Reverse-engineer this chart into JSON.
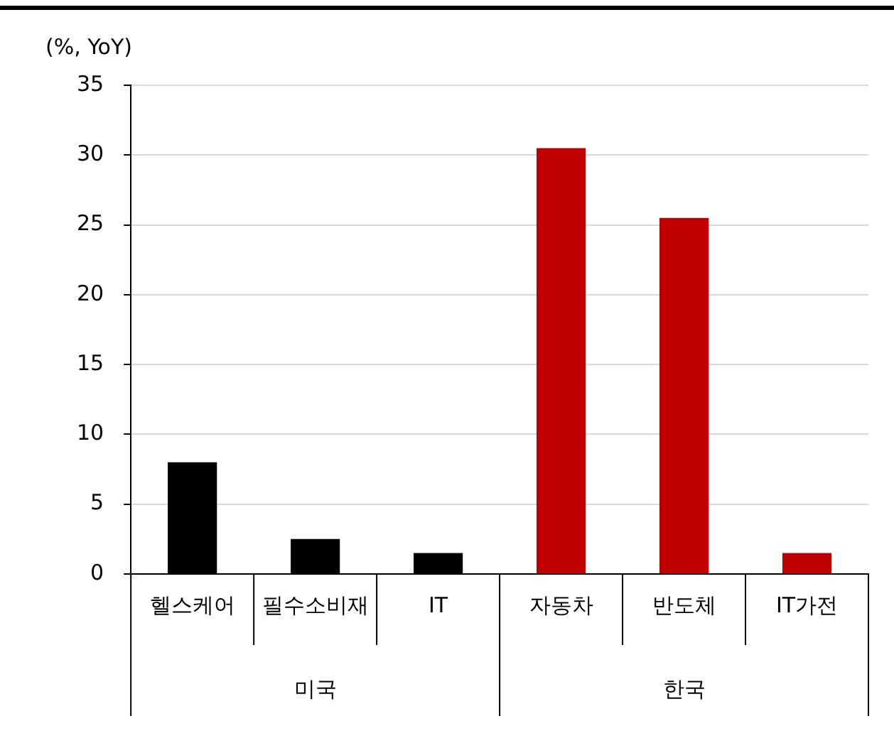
{
  "chart_data": {
    "type": "bar",
    "ylabel": "(%, YoY)",
    "categories": [
      "헬스케어",
      "필수소비재",
      "IT",
      "자동차",
      "반도체",
      "IT가전"
    ],
    "values": [
      8,
      2.5,
      1.5,
      30.5,
      25.5,
      1.5
    ],
    "colors": [
      "#000000",
      "#000000",
      "#000000",
      "#c00000",
      "#c00000",
      "#c00000"
    ],
    "ylim": [
      0,
      35
    ],
    "yticks": [
      0,
      5,
      10,
      15,
      20,
      25,
      30,
      35
    ],
    "grid": "y",
    "legend": false,
    "annotations": [
      "미국",
      "한국"
    ]
  }
}
